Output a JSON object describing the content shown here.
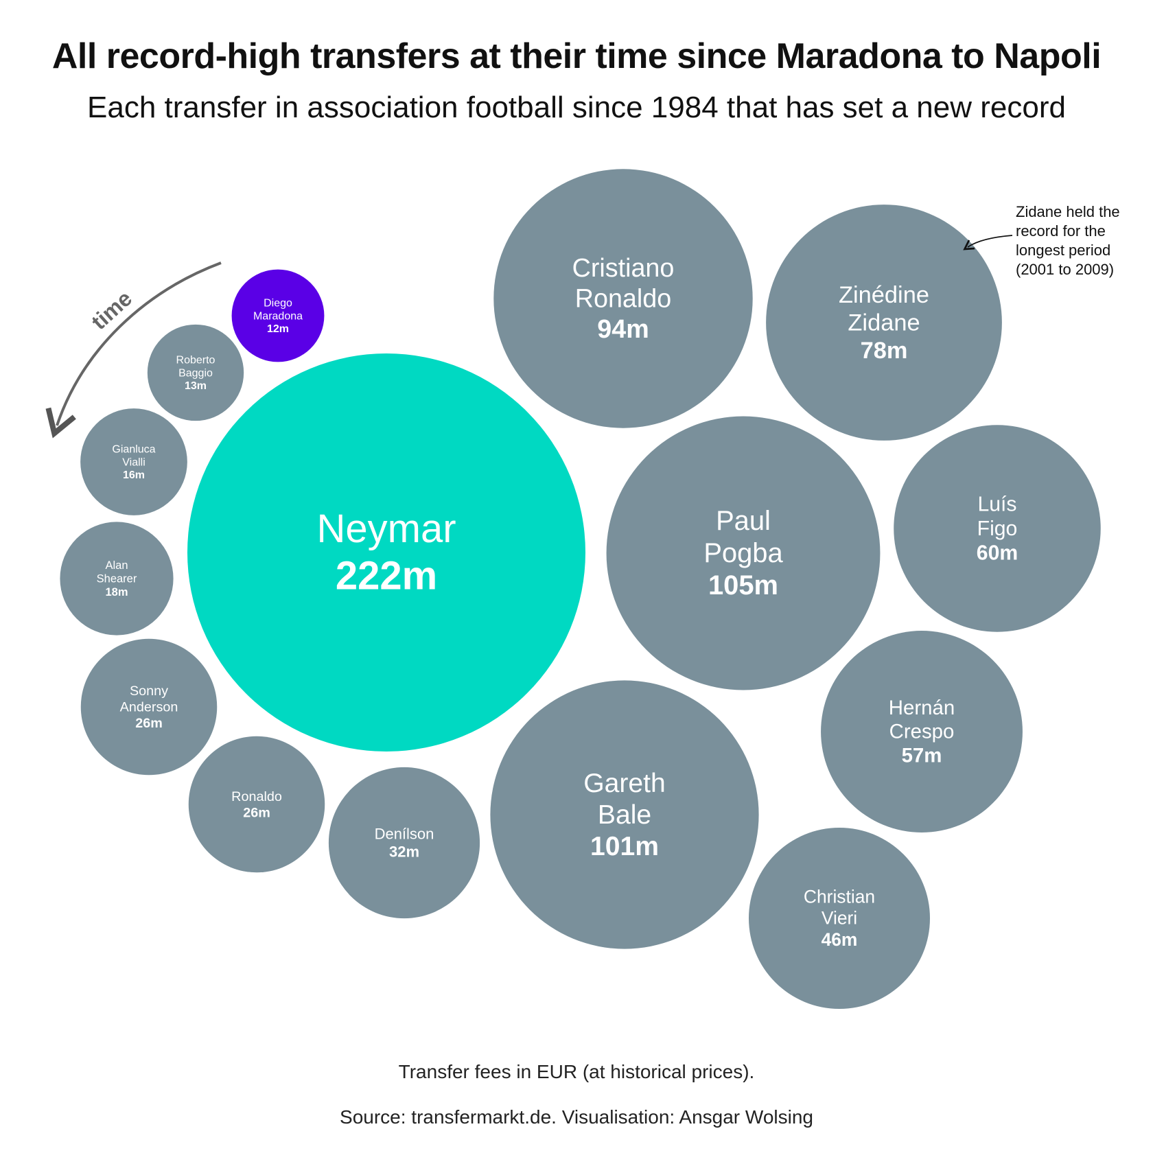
{
  "title": "All record-high transfers at their time since Maradona to Napoli",
  "subtitle": "Each transfer in association football since 1984 that has set a new record",
  "note": "Transfer fees in EUR (at historical prices).",
  "source": "Source: transfermarkt.de. Visualisation: Ansgar Wolsing",
  "time_label": "time",
  "annotation": [
    "Zidane held the",
    "record for the",
    "longest period",
    "(2001 to 2009)"
  ],
  "colors": {
    "default": "#7a909b",
    "maradona": "#5a00e6",
    "neymar": "#00d9c2",
    "arrow": "#555555"
  },
  "chart_data": {
    "type": "bubble",
    "unit": "m EUR",
    "points": [
      {
        "name": [
          "Diego",
          "Maradona"
        ],
        "value": 12,
        "value_label": "12m",
        "color": "maradona"
      },
      {
        "name": [
          "Roberto",
          "Baggio"
        ],
        "value": 13,
        "value_label": "13m",
        "color": "default"
      },
      {
        "name": [
          "Gianluca",
          "Vialli"
        ],
        "value": 16,
        "value_label": "16m",
        "color": "default"
      },
      {
        "name": [
          "Alan",
          "Shearer"
        ],
        "value": 18,
        "value_label": "18m",
        "color": "default"
      },
      {
        "name": [
          "Sonny",
          "Anderson"
        ],
        "value": 26,
        "value_label": "26m",
        "color": "default"
      },
      {
        "name": [
          "Ronaldo"
        ],
        "value": 26,
        "value_label": "26m",
        "color": "default"
      },
      {
        "name": [
          "Denílson"
        ],
        "value": 32,
        "value_label": "32m",
        "color": "default"
      },
      {
        "name": [
          "Christian",
          "Vieri"
        ],
        "value": 46,
        "value_label": "46m",
        "color": "default"
      },
      {
        "name": [
          "Hernán",
          "Crespo"
        ],
        "value": 57,
        "value_label": "57m",
        "color": "default"
      },
      {
        "name": [
          "Luís",
          "Figo"
        ],
        "value": 60,
        "value_label": "60m",
        "color": "default"
      },
      {
        "name": [
          "Zinédine",
          "Zidane"
        ],
        "value": 78,
        "value_label": "78m",
        "color": "default"
      },
      {
        "name": [
          "Cristiano",
          "Ronaldo"
        ],
        "value": 94,
        "value_label": "94m",
        "color": "default"
      },
      {
        "name": [
          "Gareth",
          "Bale"
        ],
        "value": 101,
        "value_label": "101m",
        "color": "default"
      },
      {
        "name": [
          "Paul",
          "Pogba"
        ],
        "value": 105,
        "value_label": "105m",
        "color": "default"
      },
      {
        "name": [
          "Neymar"
        ],
        "value": 222,
        "value_label": "222m",
        "color": "neymar"
      }
    ]
  }
}
